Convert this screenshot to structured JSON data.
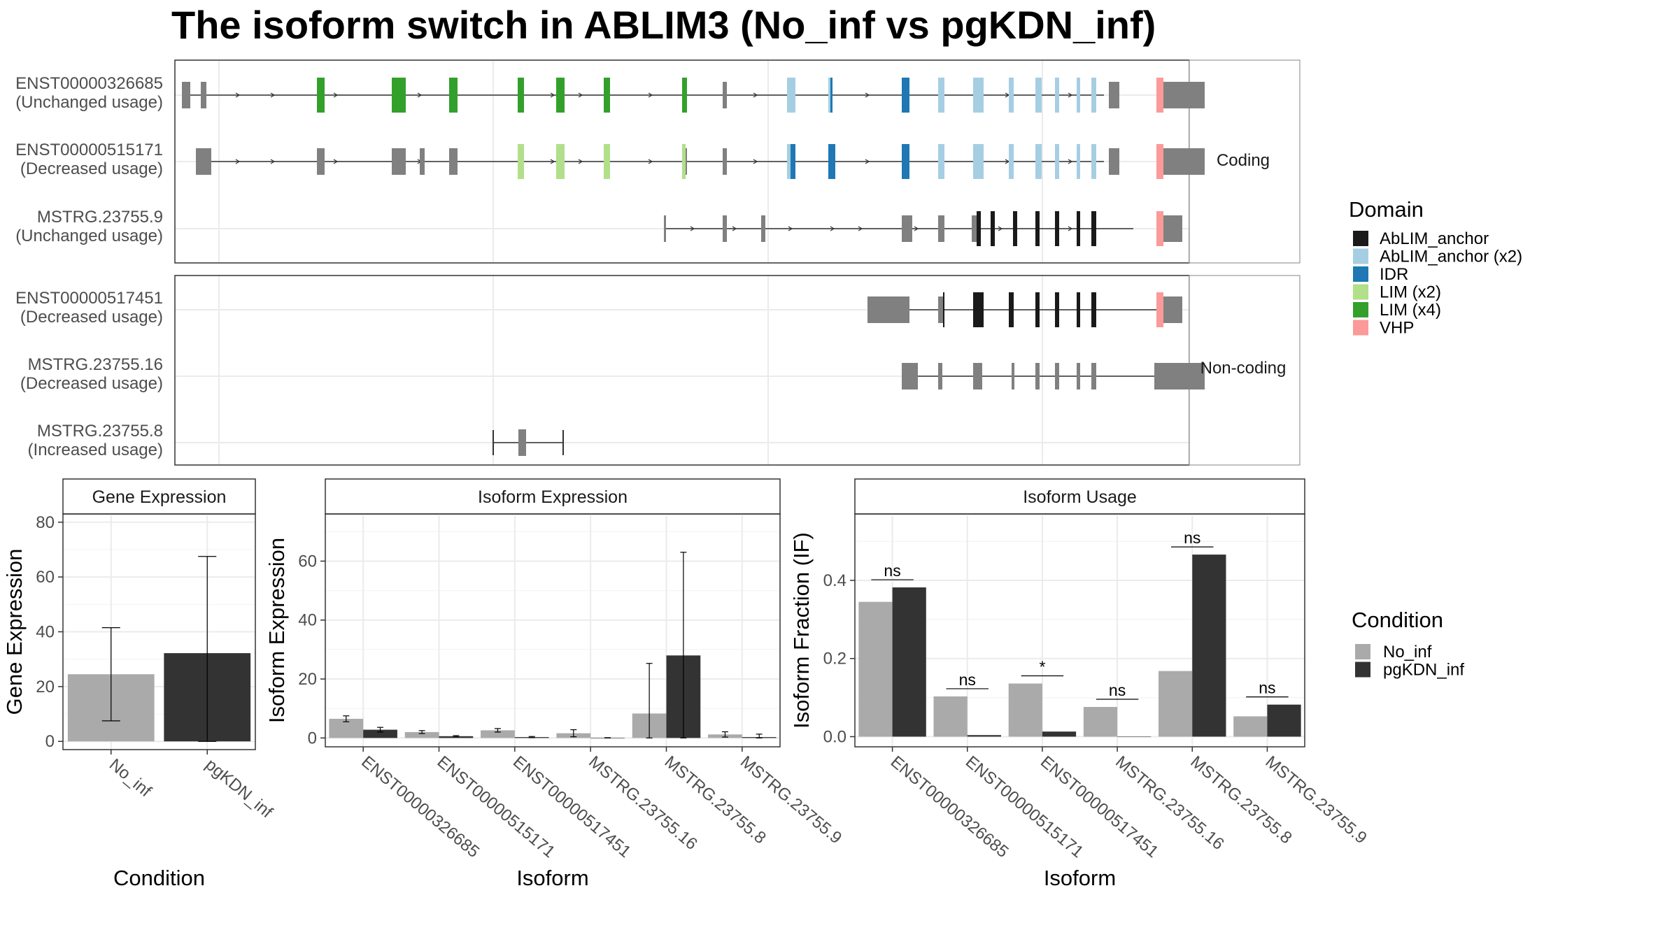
{
  "title": "The isoform switch in ABLIM3 (No_inf vs pgKDN_inf)",
  "colors": {
    "domains": {
      "AbLIM_anchor": "#1a1a1a",
      "AbLIM_anchor (x2)": "#a6cee3",
      "IDR": "#1f78b4",
      "LIM (x2)": "#b2df8a",
      "LIM (x4)": "#33a02c",
      "VHP": "#fb9a99"
    },
    "conditions": {
      "No_inf": "#aaaaaa",
      "pgKDN_inf": "#333333"
    },
    "gene_structure": "#808080"
  },
  "facets": {
    "coding_label": "Coding",
    "noncoding_label": "Non-coding"
  },
  "transcripts": [
    {
      "id": "ENST00000326685",
      "usage": "(Unchanged usage)",
      "facet": "coding",
      "line": [
        10,
        1328
      ],
      "exons": [
        [
          10,
          22,
          "n",
          null
        ],
        [
          37,
          45,
          "n",
          null
        ],
        [
          203,
          214,
          "s",
          null
        ],
        [
          310,
          330,
          "s",
          null
        ],
        [
          392,
          404,
          "s",
          null
        ],
        [
          490,
          499,
          "s",
          null
        ],
        [
          545,
          557,
          "s",
          null
        ],
        [
          613,
          622,
          "s",
          null
        ],
        [
          725,
          732,
          "s",
          null
        ],
        [
          783,
          789,
          "s",
          null
        ],
        [
          875,
          887,
          "s",
          null
        ],
        [
          934,
          940,
          "s",
          null
        ],
        [
          1039,
          1050,
          "s",
          null
        ],
        [
          1091,
          1100,
          "s",
          null
        ],
        [
          1141,
          1156,
          "s",
          null
        ],
        [
          1192,
          1199,
          "s",
          null
        ],
        [
          1230,
          1239,
          "s",
          null
        ],
        [
          1258,
          1264,
          "s",
          null
        ],
        [
          1289,
          1294,
          "s",
          null
        ],
        [
          1310,
          1317,
          "s",
          null
        ],
        [
          1335,
          1350,
          "s",
          null
        ],
        [
          1403,
          1415,
          "s",
          null
        ],
        [
          1415,
          1472,
          "s",
          null
        ]
      ],
      "domains": [
        [
          203,
          214,
          "LIM (x4)"
        ],
        [
          310,
          330,
          "LIM (x4)"
        ],
        [
          392,
          404,
          "LIM (x4)"
        ],
        [
          490,
          499,
          "LIM (x4)"
        ],
        [
          545,
          557,
          "LIM (x4)"
        ],
        [
          613,
          622,
          "LIM (x4)"
        ],
        [
          725,
          732,
          "LIM (x4)"
        ],
        [
          875,
          887,
          "AbLIM_anchor (x2)"
        ],
        [
          934,
          937,
          "AbLIM_anchor (x2)"
        ],
        [
          937,
          940,
          "IDR"
        ],
        [
          1039,
          1050,
          "IDR"
        ],
        [
          1091,
          1100,
          "AbLIM_anchor (x2)"
        ],
        [
          1141,
          1156,
          "AbLIM_anchor (x2)"
        ],
        [
          1192,
          1199,
          "AbLIM_anchor (x2)"
        ],
        [
          1230,
          1239,
          "AbLIM_anchor (x2)"
        ],
        [
          1258,
          1264,
          "AbLIM_anchor (x2)"
        ],
        [
          1289,
          1294,
          "AbLIM_anchor (x2)"
        ],
        [
          1310,
          1317,
          "AbLIM_anchor (x2)"
        ],
        [
          1403,
          1413,
          "VHP"
        ]
      ],
      "arrows": [
        90,
        140,
        230,
        350,
        540,
        580,
        680,
        830,
        990,
        1190,
        1280
      ]
    },
    {
      "id": "ENST00000515171",
      "usage": "(Decreased usage)",
      "facet": "coding",
      "line": [
        30,
        1328
      ],
      "exons": [
        [
          30,
          52,
          "n",
          null
        ],
        [
          203,
          214,
          "s",
          null
        ],
        [
          310,
          330,
          "s",
          null
        ],
        [
          350,
          357,
          "s",
          null
        ],
        [
          392,
          404,
          "s",
          null
        ],
        [
          490,
          499,
          "s",
          null
        ],
        [
          545,
          557,
          "s",
          null
        ],
        [
          613,
          622,
          "s",
          null
        ],
        [
          725,
          732,
          "s",
          null
        ],
        [
          783,
          789,
          "s",
          null
        ],
        [
          875,
          887,
          "s",
          null
        ],
        [
          934,
          944,
          "s",
          null
        ],
        [
          1039,
          1050,
          "s",
          null
        ],
        [
          1091,
          1100,
          "s",
          null
        ],
        [
          1141,
          1156,
          "s",
          null
        ],
        [
          1192,
          1199,
          "s",
          null
        ],
        [
          1230,
          1239,
          "s",
          null
        ],
        [
          1258,
          1264,
          "s",
          null
        ],
        [
          1289,
          1294,
          "s",
          null
        ],
        [
          1310,
          1317,
          "s",
          null
        ],
        [
          1335,
          1350,
          "s",
          null
        ],
        [
          1403,
          1415,
          "s",
          null
        ],
        [
          1415,
          1472,
          "s",
          null
        ]
      ],
      "domains": [
        [
          490,
          499,
          "LIM (x2)"
        ],
        [
          545,
          557,
          "LIM (x2)"
        ],
        [
          613,
          622,
          "LIM (x2)"
        ],
        [
          725,
          730,
          "LIM (x2)"
        ],
        [
          875,
          880,
          "AbLIM_anchor (x2)"
        ],
        [
          880,
          887,
          "IDR"
        ],
        [
          934,
          944,
          "IDR"
        ],
        [
          1039,
          1050,
          "IDR"
        ],
        [
          1091,
          1100,
          "AbLIM_anchor (x2)"
        ],
        [
          1141,
          1156,
          "AbLIM_anchor (x2)"
        ],
        [
          1192,
          1199,
          "AbLIM_anchor (x2)"
        ],
        [
          1230,
          1239,
          "AbLIM_anchor (x2)"
        ],
        [
          1258,
          1264,
          "AbLIM_anchor (x2)"
        ],
        [
          1289,
          1294,
          "AbLIM_anchor (x2)"
        ],
        [
          1310,
          1317,
          "AbLIM_anchor (x2)"
        ],
        [
          1403,
          1413,
          "VHP"
        ]
      ],
      "arrows": [
        90,
        140,
        230,
        350,
        540,
        580,
        680,
        830,
        990,
        1190,
        1280
      ]
    },
    {
      "id": "MSTRG.23755.9",
      "usage": "(Unchanged usage)",
      "facet": "coding",
      "line": [
        699,
        1370
      ],
      "exons": [
        [
          699,
          702,
          "n",
          null
        ],
        [
          783,
          789,
          "s",
          null
        ],
        [
          838,
          844,
          "s",
          null
        ],
        [
          1039,
          1054,
          "s",
          null
        ],
        [
          1091,
          1100,
          "s",
          null
        ],
        [
          1139,
          1146,
          "s",
          null
        ],
        [
          1166,
          1172,
          "s",
          null
        ],
        [
          1198,
          1204,
          "s",
          null
        ],
        [
          1230,
          1236,
          "s",
          null
        ],
        [
          1258,
          1264,
          "s",
          null
        ],
        [
          1289,
          1294,
          "s",
          null
        ],
        [
          1310,
          1317,
          "s",
          null
        ],
        [
          1403,
          1413,
          "s",
          null
        ],
        [
          1413,
          1440,
          "n",
          null
        ]
      ],
      "domains": [
        [
          1146,
          1152,
          "AbLIM_anchor"
        ],
        [
          1166,
          1172,
          "AbLIM_anchor"
        ],
        [
          1198,
          1204,
          "AbLIM_anchor"
        ],
        [
          1230,
          1236,
          "AbLIM_anchor"
        ],
        [
          1258,
          1264,
          "AbLIM_anchor"
        ],
        [
          1289,
          1294,
          "AbLIM_anchor"
        ],
        [
          1310,
          1317,
          "AbLIM_anchor"
        ],
        [
          1403,
          1413,
          "VHP"
        ]
      ],
      "arrows": [
        740,
        800,
        880,
        940,
        980,
        1060,
        1180,
        1280
      ]
    },
    {
      "id": "ENST00000517451",
      "usage": "(Decreased usage)",
      "facet": "noncoding",
      "line": [
        990,
        1440
      ],
      "exons": [
        [
          990,
          1050,
          "s",
          null
        ],
        [
          1091,
          1100,
          "n",
          null
        ],
        [
          1141,
          1156,
          "s",
          null
        ],
        [
          1192,
          1199,
          "s",
          null
        ],
        [
          1230,
          1236,
          "s",
          null
        ],
        [
          1258,
          1264,
          "s",
          null
        ],
        [
          1289,
          1294,
          "s",
          null
        ],
        [
          1310,
          1317,
          "s",
          null
        ],
        [
          1403,
          1413,
          "s",
          null
        ],
        [
          1413,
          1440,
          "n",
          null
        ]
      ],
      "domains": [
        [
          1098,
          1100,
          "AbLIM_anchor"
        ],
        [
          1141,
          1156,
          "AbLIM_anchor"
        ],
        [
          1192,
          1199,
          "AbLIM_anchor"
        ],
        [
          1230,
          1236,
          "AbLIM_anchor"
        ],
        [
          1258,
          1264,
          "AbLIM_anchor"
        ],
        [
          1289,
          1294,
          "AbLIM_anchor"
        ],
        [
          1310,
          1317,
          "AbLIM_anchor"
        ],
        [
          1403,
          1413,
          "VHP"
        ]
      ],
      "arrows": []
    },
    {
      "id": "MSTRG.23755.16",
      "usage": "(Decreased usage)",
      "facet": "noncoding",
      "line": [
        1039,
        1472
      ],
      "exons": [
        [
          1039,
          1062,
          "s",
          null
        ],
        [
          1091,
          1097,
          "s",
          null
        ],
        [
          1141,
          1154,
          "s",
          null
        ],
        [
          1196,
          1200,
          "s",
          null
        ],
        [
          1230,
          1236,
          "s",
          null
        ],
        [
          1258,
          1264,
          "s",
          null
        ],
        [
          1289,
          1294,
          "s",
          null
        ],
        [
          1310,
          1317,
          "s",
          null
        ],
        [
          1400,
          1472,
          "s",
          null
        ]
      ],
      "domains": [],
      "arrows": []
    },
    {
      "id": "MSTRG.23755.8",
      "usage": "(Increased usage)",
      "facet": "noncoding",
      "line": [
        455,
        555
      ],
      "exons": [
        [
          491,
          502,
          "s",
          null
        ]
      ],
      "domains": [],
      "arrows": []
    }
  ],
  "legend_domain": {
    "title": "Domain",
    "items": [
      "AbLIM_anchor",
      "AbLIM_anchor (x2)",
      "IDR",
      "LIM (x2)",
      "LIM (x4)",
      "VHP"
    ]
  },
  "legend_condition": {
    "title": "Condition",
    "items": [
      "No_inf",
      "pgKDN_inf"
    ]
  },
  "chart_data": [
    {
      "type": "bar",
      "title": "Gene Expression",
      "xlabel": "Condition",
      "ylabel": "Gene Expression",
      "categories": [
        "No_inf",
        "pgKDN_inf"
      ],
      "values": [
        24.5,
        32.2
      ],
      "error_low": [
        7.5,
        0
      ],
      "error_high": [
        41.5,
        67.5
      ],
      "ylim": [
        -3,
        83
      ],
      "yticks": [
        0,
        20,
        40,
        60,
        80
      ]
    },
    {
      "type": "bar",
      "title": "Isoform Expression",
      "xlabel": "Isoform",
      "ylabel": "Isoform Expression",
      "categories": [
        "ENST00000326685",
        "ENST00000515171",
        "ENST00000517451",
        "MSTRG.23755.16",
        "MSTRG.23755.8",
        "MSTRG.23755.9"
      ],
      "series": [
        {
          "name": "No_inf",
          "values": [
            6.5,
            2.0,
            2.6,
            1.6,
            8.3,
            1.2
          ],
          "error_low": [
            5.5,
            1.5,
            2.0,
            0.4,
            0,
            0.3
          ],
          "error_high": [
            7.5,
            2.5,
            3.2,
            2.8,
            25.3,
            2.1
          ]
        },
        {
          "name": "pgKDN_inf",
          "values": [
            2.8,
            0.6,
            0.3,
            0.05,
            28.0,
            0.3
          ],
          "error_low": [
            2.0,
            0.4,
            0.1,
            0,
            0,
            0
          ],
          "error_high": [
            3.6,
            0.8,
            0.5,
            0.1,
            63.0,
            1.3
          ]
        }
      ],
      "ylim": [
        -3,
        76
      ],
      "yticks": [
        0,
        20,
        40,
        60
      ]
    },
    {
      "type": "bar",
      "title": "Isoform Usage",
      "xlabel": "Isoform",
      "ylabel": "Isoform Fraction (IF)",
      "categories": [
        "ENST00000326685",
        "ENST00000515171",
        "ENST00000517451",
        "MSTRG.23755.16",
        "MSTRG.23755.8",
        "MSTRG.23755.9"
      ],
      "series": [
        {
          "name": "No_inf",
          "values": [
            0.345,
            0.103,
            0.136,
            0.076,
            0.168,
            0.052
          ]
        },
        {
          "name": "pgKDN_inf",
          "values": [
            0.382,
            0.004,
            0.013,
            0.0,
            0.466,
            0.082
          ]
        }
      ],
      "significance": [
        "ns",
        "ns",
        "*",
        "ns",
        "ns",
        "ns"
      ],
      "ylim": [
        -0.026,
        0.57
      ],
      "yticks": [
        0.0,
        0.2,
        0.4
      ],
      "ytick_labels": [
        "0.0",
        "0.2",
        "0.4"
      ]
    }
  ]
}
